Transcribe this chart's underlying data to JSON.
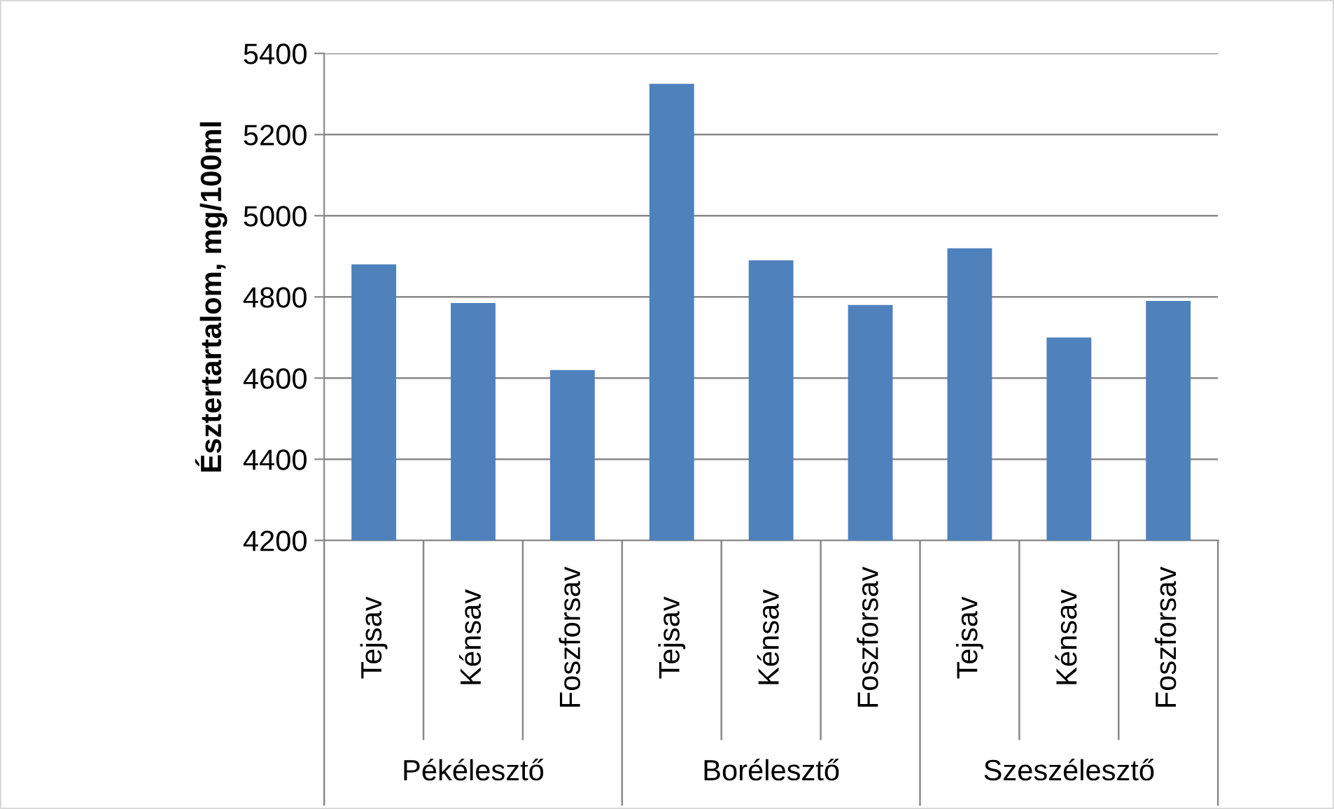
{
  "chart_data": {
    "type": "bar",
    "ylabel": "Észtertartalom, mg/100ml",
    "categories": [
      "Tejsav",
      "Kénsav",
      "Foszforsav",
      "Tejsav",
      "Kénsav",
      "Foszforsav",
      "Tejsav",
      "Kénsav",
      "Foszforsav"
    ],
    "values": [
      4880,
      4785,
      4620,
      5325,
      4890,
      4780,
      4920,
      4700,
      4790
    ],
    "color": "#4f81bd",
    "annotations": [
      "Pékélesztő",
      "Borélesztő",
      "Szeszélesztő"
    ],
    "ylim": [
      4200,
      5400
    ],
    "yticks": [
      4200,
      4400,
      4600,
      4800,
      5000,
      5200,
      5400
    ],
    "grid": "y",
    "legend": false
  }
}
